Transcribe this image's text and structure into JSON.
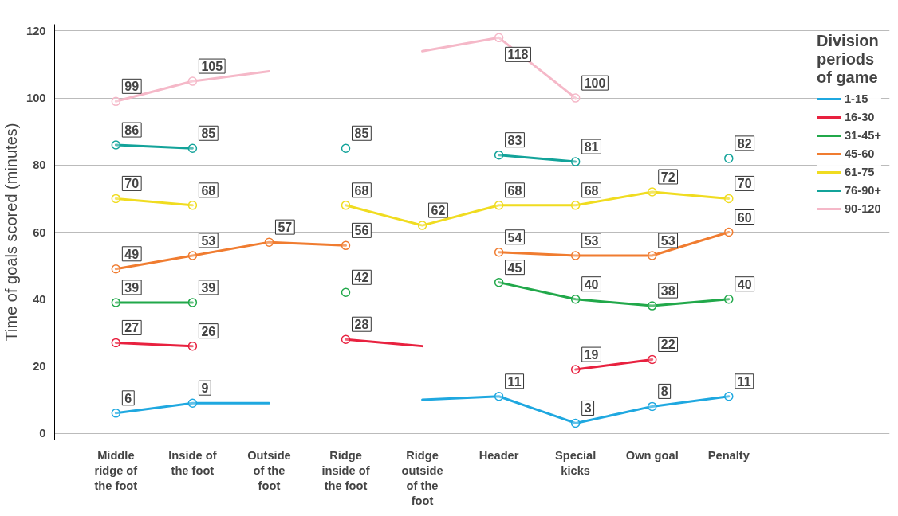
{
  "chart_data": {
    "type": "line",
    "ylabel": "Time of goals scored (minutes)",
    "legend_title": "Division periods of game",
    "categories": [
      "Middle ridge of the foot",
      "Inside of the foot",
      "Outside of the foot",
      "Ridge inside of the foot",
      "Ridge outside of the foot",
      "Header",
      "Special kicks",
      "Own goal",
      "Penalty"
    ],
    "series": [
      {
        "name": "1-15",
        "color": "#1fa8e0",
        "values": [
          6,
          9,
          9,
          null,
          10,
          11,
          3,
          8,
          11
        ],
        "value_labels": [
          "6",
          "9",
          null,
          null,
          null,
          "11",
          "3",
          "8",
          "11"
        ]
      },
      {
        "name": "16-30",
        "color": "#e8213f",
        "values": [
          27,
          26,
          null,
          28,
          26,
          null,
          19,
          22,
          null
        ],
        "value_labels": [
          "27",
          "26",
          null,
          "28",
          null,
          null,
          "19",
          "22",
          null
        ]
      },
      {
        "name": "31-45+",
        "color": "#21a84a",
        "values": [
          39,
          39,
          null,
          42,
          null,
          45,
          40,
          38,
          40
        ],
        "value_labels": [
          "39",
          "39",
          null,
          "42",
          null,
          "45",
          "40",
          "38",
          "40"
        ]
      },
      {
        "name": "45-60",
        "color": "#f07c30",
        "values": [
          49,
          53,
          57,
          56,
          null,
          54,
          53,
          53,
          60
        ],
        "value_labels": [
          "49",
          "53",
          "57",
          "56",
          null,
          "54",
          "53",
          "53",
          "60"
        ]
      },
      {
        "name": "61-75",
        "color": "#f0dc20",
        "values": [
          70,
          68,
          null,
          68,
          62,
          68,
          68,
          72,
          70
        ],
        "value_labels": [
          "70",
          "68",
          null,
          "68",
          "62",
          "68",
          "68",
          "72",
          "70"
        ]
      },
      {
        "name": "76-90+",
        "color": "#13a39a",
        "values": [
          86,
          85,
          null,
          85,
          null,
          83,
          81,
          null,
          82
        ],
        "value_labels": [
          "86",
          "85",
          null,
          "85",
          null,
          "83",
          "81",
          null,
          "82"
        ]
      },
      {
        "name": "90-120",
        "color": "#f5b8c8",
        "values": [
          99,
          105,
          108,
          null,
          114,
          118,
          100,
          null,
          null
        ],
        "value_labels": [
          "99",
          "105",
          null,
          null,
          null,
          "118",
          "100",
          null,
          null
        ]
      }
    ],
    "ylim": [
      -2,
      122
    ],
    "yticks": [
      0,
      20,
      40,
      60,
      80,
      100,
      120
    ],
    "grid": "y",
    "legend": "top right",
    "marker": "circle",
    "line_style": "solid"
  }
}
